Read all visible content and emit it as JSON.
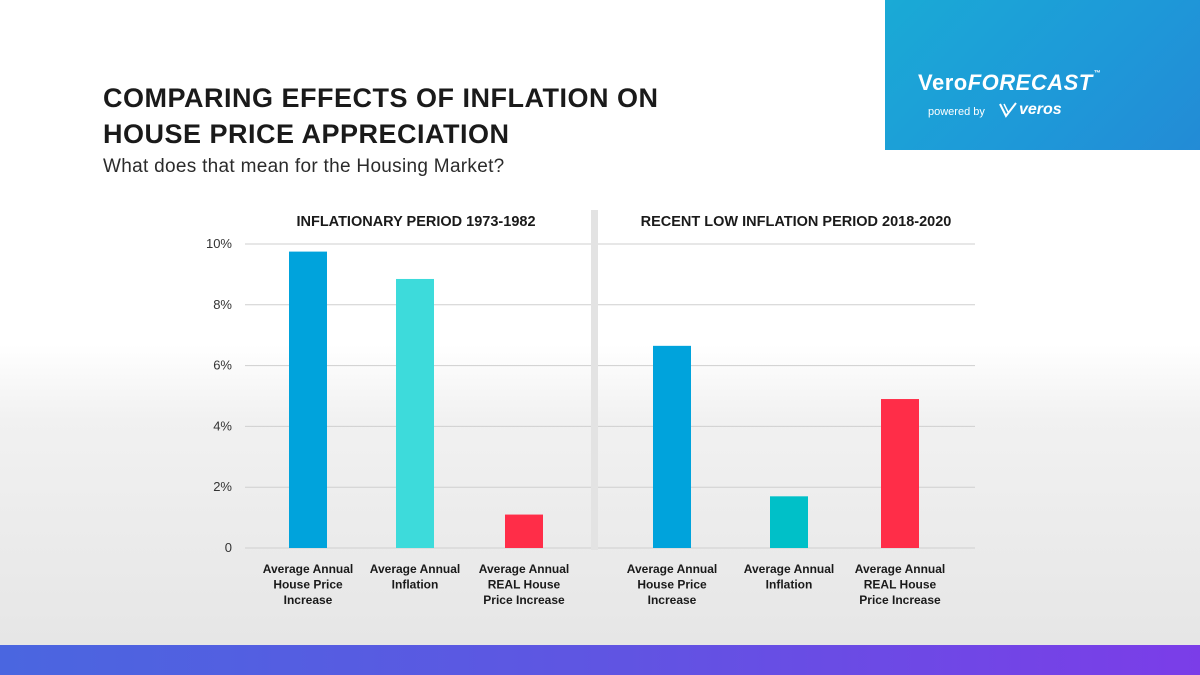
{
  "header": {
    "title_line1": "COMPARING EFFECTS OF INFLATION ON",
    "title_line2": "HOUSE PRICE APPRECIATION",
    "subtitle": "What does that mean for the Housing Market?"
  },
  "brand": {
    "logo_vero": "Vero",
    "logo_forecast": "FORECAST",
    "logo_tm": "™",
    "powered_by": "powered by",
    "veros": "veros",
    "box_color": "#1ea3d8"
  },
  "chart_data": {
    "type": "bar",
    "ylim": [
      0,
      10
    ],
    "yticks": [
      {
        "value": 0,
        "label": "0"
      },
      {
        "value": 2,
        "label": "2%"
      },
      {
        "value": 4,
        "label": "4%"
      },
      {
        "value": 6,
        "label": "6%"
      },
      {
        "value": 8,
        "label": "8%"
      },
      {
        "value": 10,
        "label": "10%"
      }
    ],
    "panels": [
      {
        "title": "INFLATIONARY PERIOD 1973-1982",
        "bars": [
          {
            "label": [
              "Average Annual",
              "House Price",
              "Increase"
            ],
            "value": 9.75,
            "color": "#00a3dc"
          },
          {
            "label": [
              "Average Annual",
              "Inflation"
            ],
            "value": 8.85,
            "color": "#3ddbdb"
          },
          {
            "label": [
              "Average Annual",
              "REAL House",
              "Price Increase"
            ],
            "value": 1.1,
            "color": "#ff2d48"
          }
        ]
      },
      {
        "title": "RECENT LOW INFLATION PERIOD 2018-2020",
        "bars": [
          {
            "label": [
              "Average Annual",
              "House Price",
              "Increase"
            ],
            "value": 6.65,
            "color": "#00a3dc"
          },
          {
            "label": [
              "Average Annual",
              "Inflation"
            ],
            "value": 1.7,
            "color": "#00c0c8"
          },
          {
            "label": [
              "Average Annual",
              "REAL House",
              "Price Increase"
            ],
            "value": 4.9,
            "color": "#ff2d48"
          }
        ]
      }
    ]
  }
}
